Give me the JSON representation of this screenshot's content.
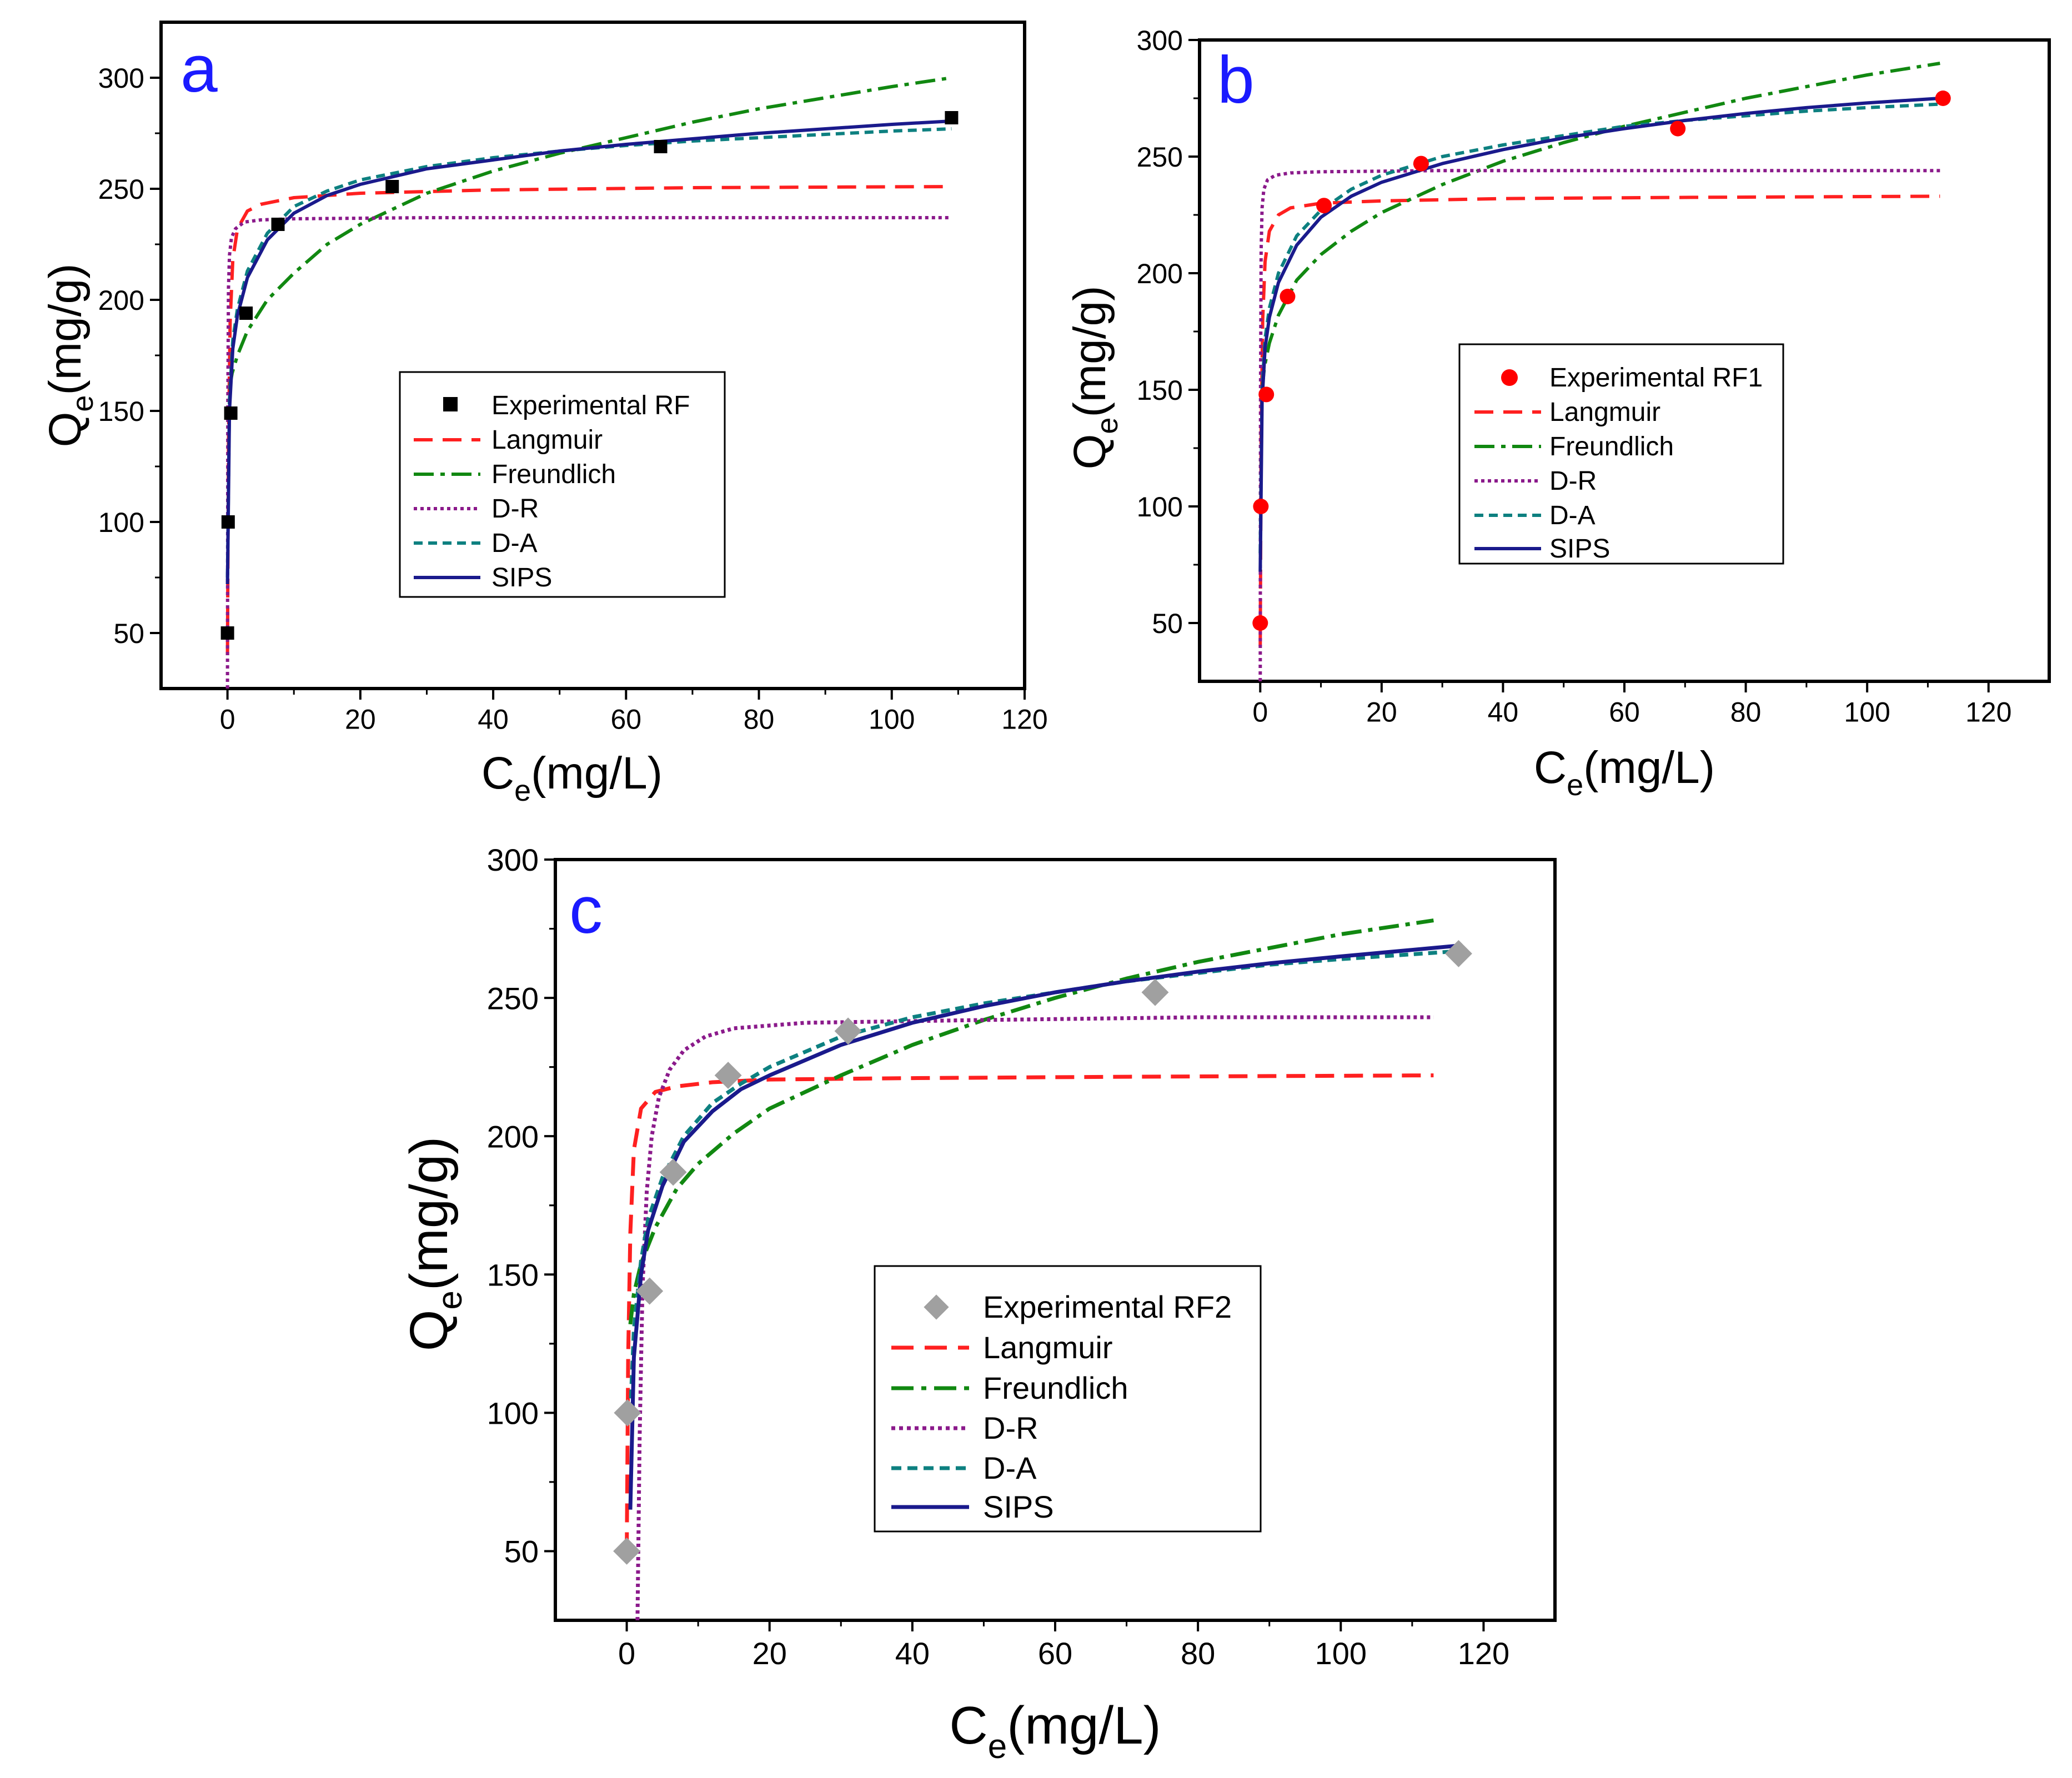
{
  "figure": {
    "curve_labels": [
      "Langmuir",
      "Freundlich",
      "D-R",
      "D-A",
      "SIPS"
    ]
  },
  "chart_data": [
    {
      "type": "scatter",
      "panel_letter": "a",
      "panel_color": "#1a1aff",
      "xlabel_main": "C",
      "xlabel_sub": "e",
      "xlabel_unit": "(mg/L)",
      "ylabel_main": "Q",
      "ylabel_sub": "e",
      "ylabel_unit": "(mg/g)",
      "xlim": [
        -10,
        120
      ],
      "ylim": [
        25,
        325
      ],
      "xticks": [
        0,
        20,
        40,
        60,
        80,
        100,
        120
      ],
      "yticks": [
        50,
        100,
        150,
        200,
        250,
        300
      ],
      "experimental": {
        "name": "Experimental RF",
        "marker": "square",
        "color": "#000000",
        "x": [
          0.0,
          0.1,
          0.5,
          2.8,
          7.6,
          24.8,
          65.2,
          109.0
        ],
        "y": [
          50,
          100,
          149,
          194,
          234,
          251,
          269,
          282
        ]
      },
      "models": [
        {
          "name": "Langmuir",
          "color": "#ff2020",
          "dash": "34 18",
          "x": [
            0.0,
            0.15,
            0.4,
            0.8,
            1.5,
            3,
            5,
            10,
            20,
            40,
            70,
            109
          ],
          "y": [
            40,
            135,
            190,
            218,
            232,
            240,
            243,
            246,
            248,
            249.5,
            250.5,
            251
          ]
        },
        {
          "name": "Freundlich",
          "color": "#118811",
          "dash": "36 12 8 12",
          "x": [
            0.3,
            0.7,
            1.5,
            3,
            6,
            10,
            15,
            20,
            30,
            40,
            50,
            60,
            70,
            80,
            90,
            100,
            109
          ],
          "y": [
            160,
            167,
            175,
            186,
            200,
            212,
            225,
            234,
            248,
            258,
            266,
            273,
            280,
            286,
            291,
            296,
            300
          ]
        },
        {
          "name": "D-R",
          "color": "#8b1a8b",
          "dash": "6 6",
          "x": [
            0.0,
            0.05,
            0.15,
            0.3,
            0.6,
            1.2,
            2.5,
            5,
            10,
            30,
            60,
            109
          ],
          "y": [
            25,
            150,
            205,
            220,
            228,
            232,
            235,
            236,
            236.5,
            237,
            237,
            237
          ]
        },
        {
          "name": "D-A",
          "color": "#0d8080",
          "dash": "16 10",
          "x": [
            0.0,
            0.3,
            0.8,
            1.5,
            3,
            6,
            10,
            15,
            20,
            30,
            40,
            50,
            60,
            70,
            80,
            90,
            100,
            109
          ],
          "y": [
            75,
            155,
            182,
            196,
            213,
            230,
            242,
            249,
            254,
            260,
            264,
            267,
            269.5,
            271.5,
            273,
            274.5,
            276,
            277
          ]
        },
        {
          "name": "SIPS",
          "color": "#1a1a8c",
          "dash": "none",
          "x": [
            0.0,
            0.3,
            0.8,
            1.5,
            3,
            6,
            10,
            15,
            20,
            30,
            40,
            50,
            60,
            70,
            80,
            90,
            100,
            109
          ],
          "y": [
            72,
            150,
            178,
            193,
            210,
            227,
            239,
            247,
            252,
            259,
            263,
            267,
            270,
            272.5,
            275,
            277,
            279,
            280.5
          ]
        }
      ]
    },
    {
      "type": "scatter",
      "panel_letter": "b",
      "panel_color": "#1a1aff",
      "xlabel_main": "C",
      "xlabel_sub": "e",
      "xlabel_unit": "(mg/L)",
      "ylabel_main": "Q",
      "ylabel_sub": "e",
      "ylabel_unit": "(mg/g)",
      "xlim": [
        -10,
        130
      ],
      "ylim": [
        25,
        300
      ],
      "xticks": [
        0,
        20,
        40,
        60,
        80,
        100,
        120
      ],
      "yticks": [
        50,
        100,
        150,
        200,
        250,
        300
      ],
      "experimental": {
        "name": "Experimental RF1",
        "marker": "circle",
        "color": "#ff0000",
        "x": [
          0.0,
          0.1,
          1.0,
          4.5,
          10.5,
          26.5,
          68.8,
          112.5
        ],
        "y": [
          50,
          100,
          148,
          190,
          229,
          247,
          262,
          275
        ]
      },
      "models": [
        {
          "name": "Langmuir",
          "color": "#ff2020",
          "dash": "34 18",
          "x": [
            0.0,
            0.15,
            0.4,
            0.8,
            1.5,
            3,
            5,
            10,
            20,
            40,
            70,
            112
          ],
          "y": [
            40,
            130,
            180,
            205,
            218,
            225,
            228,
            230,
            231,
            232,
            232.5,
            233
          ]
        },
        {
          "name": "Freundlich",
          "color": "#118811",
          "dash": "36 12 8 12",
          "x": [
            0.3,
            0.7,
            1.5,
            3,
            6,
            10,
            15,
            20,
            30,
            40,
            50,
            60,
            70,
            80,
            90,
            100,
            112
          ],
          "y": [
            150,
            160,
            170,
            182,
            197,
            208,
            218,
            226,
            238,
            248,
            256,
            263,
            269,
            275,
            280,
            285,
            290
          ]
        },
        {
          "name": "D-R",
          "color": "#8b1a8b",
          "dash": "6 6",
          "x": [
            0.0,
            0.05,
            0.15,
            0.3,
            0.6,
            1.2,
            2.5,
            5,
            10,
            30,
            60,
            112
          ],
          "y": [
            25,
            150,
            210,
            228,
            236,
            240,
            242,
            243,
            243.5,
            244,
            244,
            244
          ]
        },
        {
          "name": "D-A",
          "color": "#0d8080",
          "dash": "16 10",
          "x": [
            0.0,
            0.3,
            0.8,
            1.5,
            3,
            6,
            10,
            15,
            20,
            30,
            40,
            50,
            60,
            70,
            80,
            90,
            100,
            112
          ],
          "y": [
            80,
            150,
            172,
            185,
            200,
            216,
            227,
            236,
            242,
            250,
            255,
            259,
            263,
            265.5,
            267.5,
            269.5,
            271,
            272.5
          ]
        },
        {
          "name": "SIPS",
          "color": "#1a1a8c",
          "dash": "none",
          "x": [
            0.0,
            0.3,
            0.8,
            1.5,
            3,
            6,
            10,
            15,
            20,
            30,
            40,
            50,
            60,
            70,
            80,
            90,
            100,
            112
          ],
          "y": [
            72,
            145,
            168,
            181,
            196,
            212,
            224,
            233,
            239,
            247,
            253,
            258,
            262,
            265.5,
            268.5,
            271,
            273,
            275
          ]
        }
      ]
    },
    {
      "type": "scatter",
      "panel_letter": "c",
      "panel_color": "#1a1aff",
      "xlabel_main": "C",
      "xlabel_sub": "e",
      "xlabel_unit": "(mg/L)",
      "ylabel_main": "Q",
      "ylabel_sub": "e",
      "ylabel_unit": "(mg/g)",
      "xlim": [
        -10,
        130
      ],
      "ylim": [
        25,
        300
      ],
      "xticks": [
        0,
        20,
        40,
        60,
        80,
        100,
        120
      ],
      "yticks": [
        50,
        100,
        150,
        200,
        250,
        300
      ],
      "experimental": {
        "name": "Experimental RF2",
        "marker": "diamond",
        "color": "#a0a0a0",
        "x": [
          0.0,
          0.1,
          3.2,
          6.5,
          14.2,
          31.0,
          74.0,
          116.5
        ],
        "y": [
          50,
          100,
          144,
          187,
          222,
          238,
          252,
          266
        ]
      },
      "models": [
        {
          "name": "Langmuir",
          "color": "#ff2020",
          "dash": "34 18",
          "x": [
            0.0,
            0.2,
            0.5,
            1,
            2,
            4,
            7,
            12,
            20,
            40,
            70,
            113
          ],
          "y": [
            50,
            120,
            165,
            195,
            210,
            216,
            218,
            219.5,
            220.5,
            221,
            221.5,
            222
          ]
        },
        {
          "name": "Freundlich",
          "color": "#118811",
          "dash": "36 12 8 12",
          "x": [
            0.5,
            1,
            2,
            4,
            7,
            10,
            15,
            20,
            30,
            40,
            50,
            60,
            70,
            80,
            90,
            100,
            113
          ],
          "y": [
            132,
            143,
            154,
            167,
            181,
            190,
            201,
            210,
            222,
            233,
            242,
            250,
            257,
            263,
            268,
            273,
            278
          ]
        },
        {
          "name": "D-R",
          "color": "#8b1a8b",
          "dash": "6 6",
          "x": [
            1.5,
            1.8,
            2.2,
            2.8,
            3.5,
            4.5,
            6,
            8,
            11,
            15,
            25,
            50,
            80,
            113
          ],
          "y": [
            25,
            90,
            145,
            180,
            200,
            214,
            224,
            231,
            236,
            239,
            241,
            242,
            243,
            243
          ]
        },
        {
          "name": "D-A",
          "color": "#0d8080",
          "dash": "16 10",
          "x": [
            0.5,
            1,
            2,
            3,
            5,
            8,
            12,
            16,
            20,
            30,
            40,
            50,
            60,
            70,
            80,
            90,
            100,
            117
          ],
          "y": [
            100,
            130,
            155,
            170,
            185,
            200,
            212,
            219,
            225,
            236,
            243,
            248,
            252,
            256,
            259,
            262,
            264,
            267
          ]
        },
        {
          "name": "SIPS",
          "color": "#1a1a8c",
          "dash": "none",
          "x": [
            0.5,
            1,
            2,
            3,
            5,
            8,
            12,
            16,
            20,
            30,
            40,
            50,
            60,
            70,
            80,
            90,
            100,
            117
          ],
          "y": [
            65,
            120,
            150,
            166,
            182,
            198,
            209,
            217,
            222,
            233,
            241,
            247,
            252,
            256,
            259.5,
            262.5,
            265,
            269
          ]
        }
      ]
    }
  ]
}
